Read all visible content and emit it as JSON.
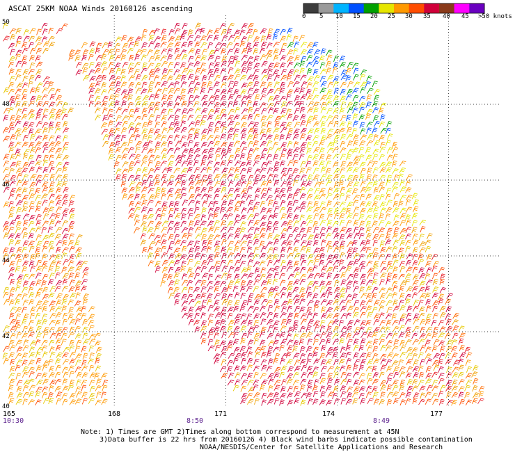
{
  "title": "ASCAT 25KM NOAA Winds 20160126 ascending",
  "colorbar": {
    "colors": [
      "#3c3c3c",
      "#9a9a9a",
      "#00b4ff",
      "#0050ff",
      "#00a000",
      "#e6e600",
      "#ff9900",
      "#ff4d00",
      "#d0003a",
      "#8a3a1a",
      "#ff00ff",
      "#6a00c0"
    ],
    "labels": [
      "0",
      "5",
      "10",
      "15",
      "20",
      "25",
      "30",
      "35",
      "40",
      "45",
      ">50 knots"
    ]
  },
  "axes": {
    "lat_ticks": [
      "50",
      "48",
      "46",
      "44",
      "42",
      "40"
    ],
    "lon_ticks": [
      "165",
      "168",
      "171",
      "174",
      "177"
    ],
    "time_labels": [
      "10:30",
      "8:50",
      "8:49"
    ]
  },
  "map": {
    "projection": "lat-lon",
    "lon_range": [
      165,
      178
    ],
    "lat_range": [
      40,
      50
    ],
    "gridlines": "dotted",
    "grid_lons": [
      168,
      171,
      174,
      177
    ],
    "grid_lats": [
      42,
      44,
      46,
      48
    ],
    "swaths": [
      {
        "name": "west",
        "polygon": [
          [
            165,
            50
          ],
          [
            165,
            40
          ],
          [
            167.8,
            40
          ],
          [
            166.6,
            46.6
          ],
          [
            166.8,
            47.7
          ],
          [
            165.9,
            49.0
          ],
          [
            166.6,
            50
          ]
        ]
      },
      {
        "name": "central",
        "polygon": [
          [
            166.6,
            49.4
          ],
          [
            169.5,
            50
          ],
          [
            172.5,
            50
          ],
          [
            174.9,
            48.7
          ],
          [
            178.0,
            40
          ],
          [
            171.4,
            40
          ],
          [
            168.8,
            43.8
          ],
          [
            167.1,
            48.5
          ]
        ]
      }
    ],
    "wind_speed_pattern": "mostly 25-40 knots over swaths, higher red speeds in central band, lower green/blue speeds near northeast swath edge"
  },
  "notes": {
    "line1": "Note: 1) Times are GMT 2)Times along bottom correspond to measurement at 45N",
    "line2": "3)Data buffer is 22 hrs from 20160126 4) Black wind barbs indicate possible contamination",
    "line3": "NOAA/NESDIS/Center for Satellite Applications and Research"
  }
}
